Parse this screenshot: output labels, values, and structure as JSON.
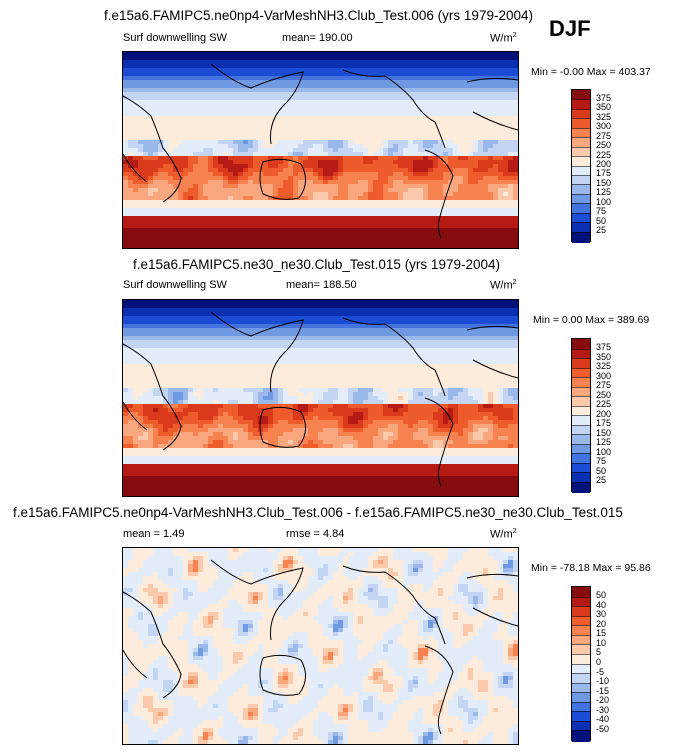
{
  "season_label": "DJF",
  "panels": [
    {
      "title": "f.e15a6.FAMIPC5.ne0np4-VarMeshNH3.Club_Test.006 (yrs 1979-2004)",
      "field_label": "Surf downwelling SW",
      "stat_label": "mean= 190.00",
      "units": "W/m",
      "units_sup": "2",
      "min_max": "Min = -0.00 Max = 403.37",
      "colorbar_ticks": [
        "375",
        "350",
        "325",
        "300",
        "275",
        "250",
        "225",
        "200",
        "175",
        "150",
        "125",
        "100",
        "75",
        "50",
        "25"
      ],
      "colorbar_colors": [
        "#850d10",
        "#b61a15",
        "#d93a1c",
        "#ee5b2c",
        "#f5824f",
        "#f8a77f",
        "#fbcaac",
        "#fdebdc",
        "#e3ecf9",
        "#c3d5f2",
        "#9bb8ea",
        "#6f99e1",
        "#4373dc",
        "#1a4cd4",
        "#0a2fb2",
        "#02127a"
      ],
      "map_kind": "absolute"
    },
    {
      "title": "f.e15a6.FAMIPC5.ne30_ne30.Club_Test.015 (yrs 1979-2004)",
      "field_label": "Surf downwelling SW",
      "stat_label": "mean= 188.50",
      "units": "W/m",
      "units_sup": "2",
      "min_max": "Min =  0.00 Max = 389.69",
      "colorbar_ticks": [
        "375",
        "350",
        "325",
        "300",
        "275",
        "250",
        "225",
        "200",
        "175",
        "150",
        "125",
        "100",
        "75",
        "50",
        "25"
      ],
      "colorbar_colors": [
        "#850d10",
        "#b61a15",
        "#d93a1c",
        "#ee5b2c",
        "#f5824f",
        "#f8a77f",
        "#fbcaac",
        "#fdebdc",
        "#e3ecf9",
        "#c3d5f2",
        "#9bb8ea",
        "#6f99e1",
        "#4373dc",
        "#1a4cd4",
        "#0a2fb2",
        "#02127a"
      ],
      "map_kind": "absolute"
    },
    {
      "title": "f.e15a6.FAMIPC5.ne0np4-VarMeshNH3.Club_Test.006 - f.e15a6.FAMIPC5.ne30_ne30.Club_Test.015",
      "field_label": "mean =  1.49",
      "stat_label": "rmse =  4.84",
      "units": "W/m",
      "units_sup": "2",
      "min_max": "Min = -78.18 Max =  95.86",
      "colorbar_ticks": [
        "50",
        "40",
        "30",
        "20",
        "15",
        "10",
        "5",
        "0",
        "-5",
        "-10",
        "-15",
        "-20",
        "-30",
        "-40",
        "-50"
      ],
      "colorbar_colors": [
        "#850d10",
        "#b61a15",
        "#d93a1c",
        "#ee5b2c",
        "#f5824f",
        "#f8a77f",
        "#fbcaac",
        "#fdebdc",
        "#e3ecf9",
        "#c3d5f2",
        "#9bb8ea",
        "#6f99e1",
        "#4373dc",
        "#1a4cd4",
        "#0a2fb2",
        "#02127a"
      ],
      "map_kind": "difference"
    }
  ]
}
